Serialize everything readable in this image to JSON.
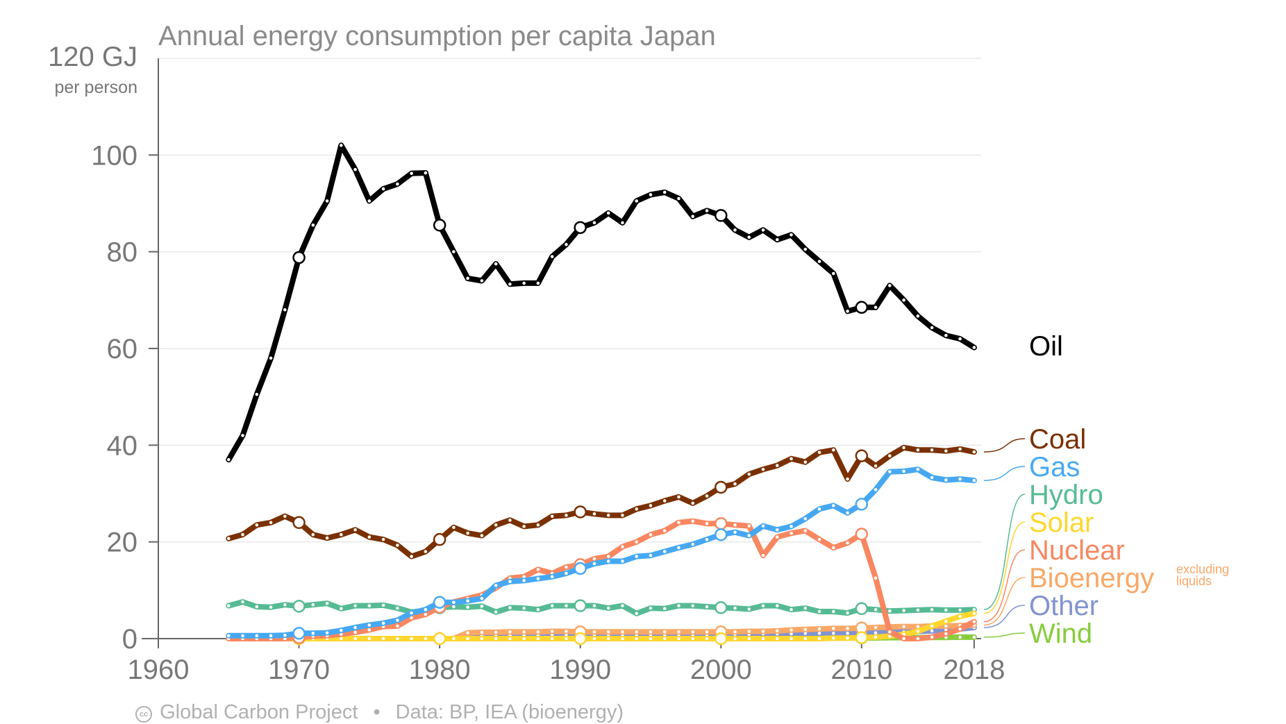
{
  "chart_data": {
    "type": "line",
    "title": "Annual energy consumption per capita Japan",
    "y_unit": "120 GJ",
    "y_unit_sub": "per person",
    "ylim": [
      0,
      120
    ],
    "xlim": [
      1960,
      2018
    ],
    "y_ticks": [
      "0",
      "20",
      "40",
      "60",
      "80",
      "100"
    ],
    "x_ticks": [
      "1960",
      "1970",
      "1980",
      "1990",
      "2000",
      "2010",
      "2018"
    ],
    "x_start": 1965,
    "series": [
      {
        "name": "Oil",
        "color": "#000000",
        "values": [
          37.0,
          42.0,
          50.5,
          58.0,
          68.0,
          78.8,
          85.5,
          90.5,
          102.0,
          97.0,
          90.5,
          93.0,
          94.0,
          96.2,
          96.3,
          85.5,
          80.0,
          74.5,
          74.0,
          77.5,
          73.3,
          73.5,
          73.5,
          79.0,
          81.5,
          85.0,
          86.0,
          88.0,
          86.0,
          90.5,
          91.8,
          92.3,
          91.0,
          87.3,
          88.5,
          87.5,
          84.5,
          83.0,
          84.5,
          82.5,
          83.5,
          80.5,
          78.0,
          75.5,
          67.7,
          68.5,
          68.5,
          73.0,
          70.0,
          66.7,
          64.3,
          62.7,
          62.0,
          60.2
        ]
      },
      {
        "name": "Coal",
        "color": "#7a3000",
        "values": [
          20.7,
          21.5,
          23.5,
          24.0,
          25.3,
          24.0,
          21.5,
          20.8,
          21.5,
          22.5,
          21.0,
          20.5,
          19.3,
          17.0,
          18.0,
          20.5,
          23.0,
          21.8,
          21.3,
          23.5,
          24.5,
          23.2,
          23.5,
          25.3,
          25.5,
          26.2,
          25.8,
          25.5,
          25.5,
          26.8,
          27.5,
          28.5,
          29.3,
          28.0,
          29.5,
          31.3,
          32.0,
          34.0,
          35.0,
          35.8,
          37.2,
          36.5,
          38.5,
          39.0,
          33.0,
          37.8,
          35.7,
          37.8,
          39.5,
          39.0,
          39.0,
          38.8,
          39.2,
          38.6
        ]
      },
      {
        "name": "Gas",
        "color": "#47a8f2",
        "values": [
          0.6,
          0.6,
          0.6,
          0.6,
          0.7,
          1.1,
          1.1,
          1.2,
          1.7,
          2.3,
          2.8,
          3.2,
          3.8,
          5.3,
          6.0,
          7.5,
          7.5,
          7.8,
          8.3,
          11.0,
          11.8,
          12.0,
          12.4,
          12.8,
          13.5,
          14.5,
          15.5,
          16.0,
          16.0,
          17.0,
          17.2,
          18.0,
          18.8,
          19.5,
          20.5,
          21.5,
          22.0,
          21.3,
          23.3,
          22.5,
          23.2,
          24.8,
          26.8,
          27.5,
          26.0,
          27.8,
          30.8,
          34.5,
          34.6,
          35.0,
          33.3,
          32.8,
          33.0,
          32.7
        ]
      },
      {
        "name": "Hydro",
        "color": "#56bb94",
        "values": [
          6.8,
          7.6,
          6.6,
          6.5,
          7.0,
          6.7,
          7.0,
          7.3,
          6.2,
          6.8,
          6.8,
          6.9,
          6.3,
          5.5,
          5.8,
          6.4,
          6.6,
          6.5,
          6.7,
          5.5,
          6.4,
          6.3,
          6.0,
          6.8,
          6.8,
          6.8,
          6.8,
          6.3,
          6.8,
          5.2,
          6.3,
          6.2,
          6.8,
          6.8,
          6.6,
          6.4,
          6.3,
          6.1,
          6.8,
          6.8,
          6.0,
          6.3,
          5.6,
          5.6,
          5.3,
          6.2,
          6.0,
          5.7,
          5.8,
          5.9,
          6.0,
          5.9,
          5.9,
          6.0
        ]
      },
      {
        "name": "Solar",
        "color": "#ffd62e",
        "values": [
          0,
          0,
          0,
          0,
          0,
          0,
          0,
          0,
          0,
          0,
          0,
          0,
          0,
          0,
          0,
          0,
          0,
          0,
          0,
          0,
          0,
          0,
          0,
          0,
          0,
          0,
          0,
          0,
          0,
          0,
          0,
          0,
          0,
          0,
          0,
          0,
          0,
          0,
          0,
          0,
          0,
          0,
          0,
          0.1,
          0.1,
          0.2,
          0.3,
          0.5,
          0.9,
          1.5,
          2.6,
          3.6,
          4.6,
          5.2
        ]
      },
      {
        "name": "Nuclear",
        "color": "#f88760",
        "values": [
          0,
          0,
          0,
          0,
          0,
          0.2,
          0.5,
          0.6,
          0.9,
          1.3,
          1.8,
          2.5,
          2.6,
          4.3,
          5.0,
          6.5,
          7.6,
          8.3,
          9.0,
          10.5,
          12.5,
          12.8,
          14.3,
          13.5,
          14.8,
          15.3,
          16.5,
          17.0,
          19.0,
          20.0,
          21.5,
          22.3,
          24.0,
          24.3,
          23.8,
          23.8,
          23.5,
          23.3,
          17.2,
          21.0,
          21.8,
          22.3,
          20.5,
          18.8,
          19.8,
          21.6,
          12.5,
          1.4,
          0,
          0,
          0.3,
          1.0,
          2.0,
          3.5
        ]
      },
      {
        "name": "Bioenergy",
        "color": "#f9a867",
        "values": [
          0,
          0,
          0,
          0,
          0,
          0,
          0,
          0,
          0,
          0,
          0,
          0,
          0,
          0,
          0,
          0,
          0,
          1.2,
          1.3,
          1.3,
          1.4,
          1.4,
          1.4,
          1.5,
          1.5,
          1.4,
          1.4,
          1.4,
          1.4,
          1.4,
          1.4,
          1.4,
          1.4,
          1.4,
          1.4,
          1.4,
          1.4,
          1.5,
          1.5,
          1.6,
          1.8,
          1.9,
          2.0,
          2.1,
          2.1,
          2.2,
          2.3,
          2.4,
          2.5,
          2.5,
          2.6,
          2.6,
          2.7,
          2.8
        ]
      },
      {
        "name": "Other",
        "color": "#8193d0",
        "values": [
          0,
          0,
          0,
          0,
          0,
          0,
          0,
          0,
          0,
          0,
          0,
          0,
          0,
          0,
          0,
          0,
          0,
          0.6,
          0.7,
          0.7,
          0.7,
          0.7,
          0.7,
          0.8,
          0.8,
          0.8,
          0.8,
          0.8,
          0.8,
          0.8,
          0.8,
          0.8,
          0.8,
          0.8,
          0.8,
          0.9,
          0.9,
          0.9,
          1.0,
          1.0,
          1.0,
          1.1,
          1.1,
          1.1,
          1.1,
          1.2,
          1.2,
          1.3,
          1.4,
          1.5,
          1.6,
          1.8,
          2.0,
          2.3
        ]
      },
      {
        "name": "Wind",
        "color": "#88cc3d",
        "values": [
          0,
          0,
          0,
          0,
          0,
          0,
          0,
          0,
          0,
          0,
          0,
          0,
          0,
          0,
          0,
          0,
          0,
          0,
          0,
          0,
          0,
          0,
          0,
          0,
          0,
          0,
          0,
          0,
          0,
          0,
          0,
          0,
          0,
          0,
          0,
          0,
          0,
          0,
          0,
          0,
          0.05,
          0.05,
          0.1,
          0.1,
          0.1,
          0.15,
          0.15,
          0.2,
          0.2,
          0.2,
          0.25,
          0.25,
          0.3,
          0.3
        ]
      }
    ],
    "highlight_years": [
      1970,
      1980,
      1990,
      2000,
      2010
    ],
    "bioenergy_note": [
      "excluding",
      "liquids"
    ],
    "grid": true
  },
  "footer": {
    "license_icon": "cc-by-icon",
    "source_org": "Global Carbon Project",
    "data_source": "Data: BP, IEA (bioenergy)"
  }
}
